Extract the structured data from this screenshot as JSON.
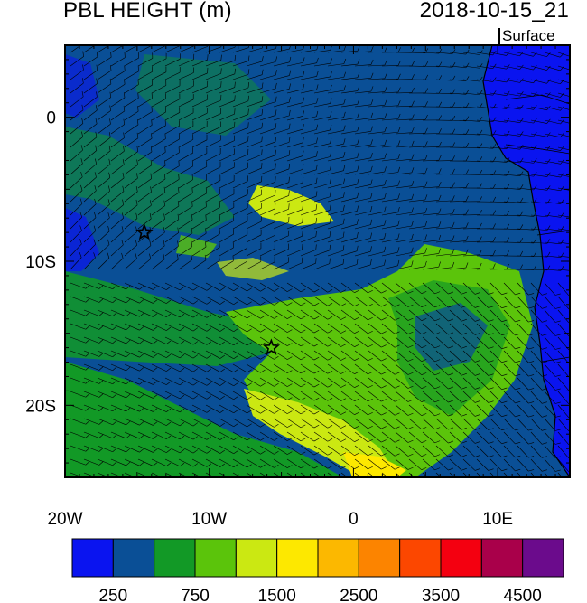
{
  "header": {
    "title": "PBL HEIGHT (m)",
    "timestamp": "2018-10-15_21",
    "level": "Surface"
  },
  "map": {
    "lon_range": [
      -20,
      15
    ],
    "lat_range": [
      -25,
      5
    ],
    "x_ticks": [
      {
        "value": -20,
        "label": "20W"
      },
      {
        "value": -10,
        "label": "10W"
      },
      {
        "value": 0,
        "label": "0"
      },
      {
        "value": 10,
        "label": "10E"
      }
    ],
    "y_ticks": [
      {
        "value": 0,
        "label": "0"
      },
      {
        "value": -10,
        "label": "10S"
      },
      {
        "value": -20,
        "label": "20S"
      }
    ],
    "markers": [
      {
        "name": "star-marker-1",
        "lon": -14.5,
        "lat": -8.0
      },
      {
        "name": "star-marker-2",
        "lon": -5.7,
        "lat": -16.0
      }
    ]
  },
  "colorbar": {
    "colors": [
      "#0a14f0",
      "#0a4f96",
      "#129926",
      "#5bc40b",
      "#cbe812",
      "#fde800",
      "#fcb800",
      "#fc8400",
      "#fc4700",
      "#f40010",
      "#a9004a",
      "#6b0b8c"
    ],
    "labels": [
      {
        "after_box": 1,
        "text": "250"
      },
      {
        "after_box": 3,
        "text": "750"
      },
      {
        "after_box": 5,
        "text": "1500"
      },
      {
        "after_box": 7,
        "text": "2500"
      },
      {
        "after_box": 9,
        "text": "3500"
      },
      {
        "after_box": 11,
        "text": "4500"
      }
    ]
  }
}
